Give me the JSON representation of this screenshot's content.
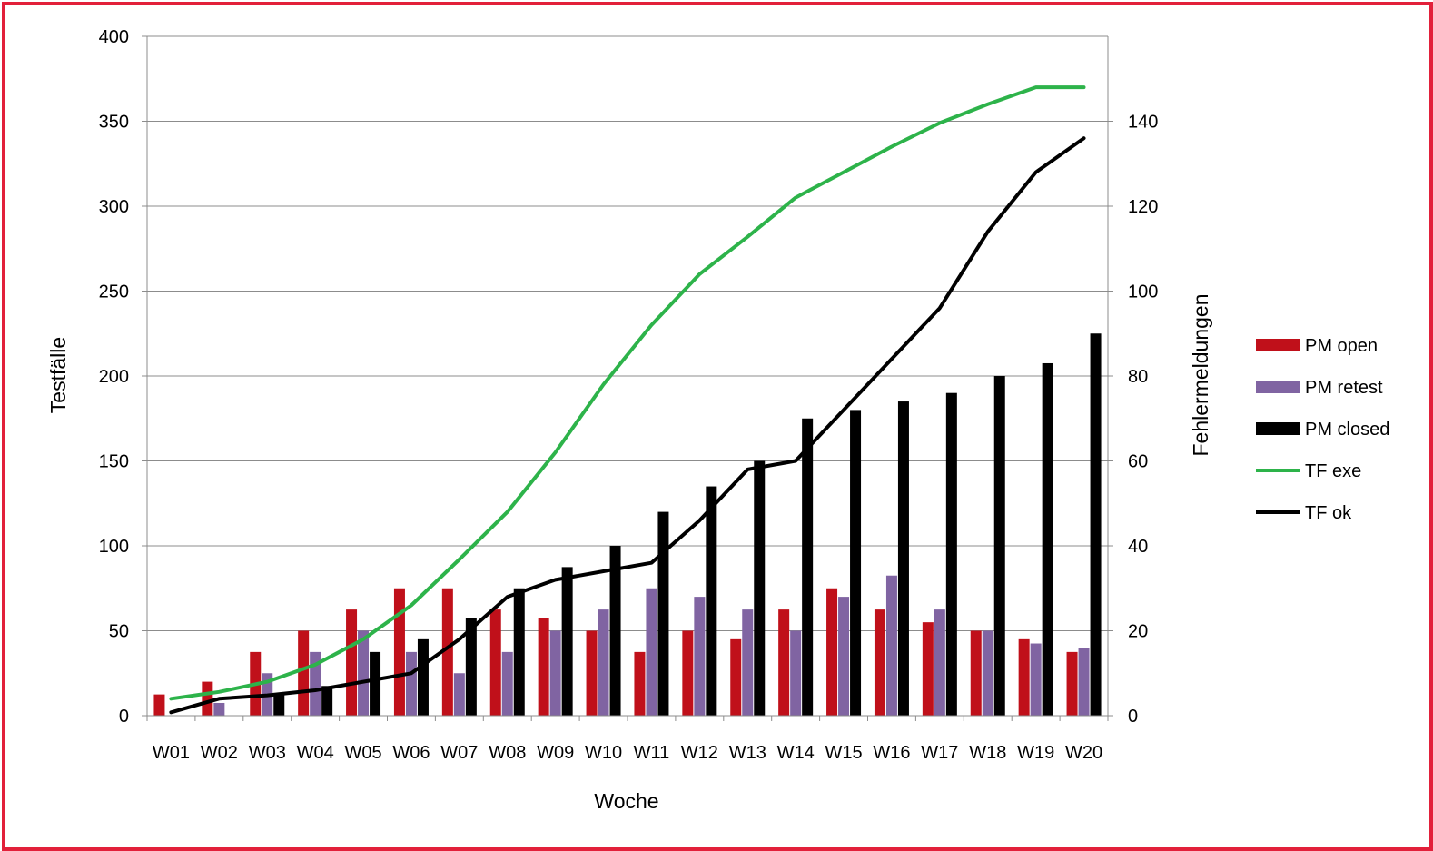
{
  "chart_data": {
    "type": "bar",
    "categories": [
      "W01",
      "W02",
      "W03",
      "W04",
      "W05",
      "W06",
      "W07",
      "W08",
      "W09",
      "W10",
      "W11",
      "W12",
      "W13",
      "W14",
      "W15",
      "W16",
      "W17",
      "W18",
      "W19",
      "W20"
    ],
    "xlabel": "Woche",
    "ylabel": "Testfälle",
    "y2label": "Fehlermeldungen",
    "ylim": [
      0,
      400
    ],
    "y2lim": [
      0,
      160
    ],
    "yticks": [
      0,
      50,
      100,
      150,
      200,
      250,
      300,
      350,
      400
    ],
    "y2ticks": [
      0,
      20,
      40,
      60,
      80,
      100,
      120,
      140
    ],
    "grid": "horizontal",
    "legend_position": "right",
    "bar_series": [
      {
        "name": "PM open",
        "color": "#c0101a",
        "axis": "right",
        "values": [
          5,
          8,
          15,
          20,
          25,
          30,
          30,
          25,
          23,
          20,
          15,
          20,
          18,
          25,
          30,
          25,
          22,
          20,
          18,
          15
        ]
      },
      {
        "name": "PM retest",
        "color": "#8064a2",
        "axis": "right",
        "values": [
          0,
          3,
          10,
          15,
          20,
          15,
          10,
          15,
          20,
          25,
          30,
          28,
          25,
          20,
          28,
          33,
          25,
          20,
          17,
          16
        ]
      },
      {
        "name": "PM closed",
        "color": "#000000",
        "axis": "right",
        "values": [
          0,
          0,
          5,
          7,
          15,
          18,
          23,
          30,
          35,
          40,
          48,
          54,
          60,
          70,
          72,
          74,
          76,
          80,
          83,
          90
        ]
      }
    ],
    "line_series": [
      {
        "name": "TF exe",
        "color": "#2db34a",
        "axis": "left",
        "values": [
          10,
          14,
          20,
          30,
          45,
          65,
          92,
          120,
          155,
          195,
          230,
          260,
          282,
          305,
          320,
          335,
          349,
          360,
          370,
          370
        ]
      },
      {
        "name": "TF ok",
        "color": "#000000",
        "axis": "left",
        "values": [
          2,
          10,
          12,
          15,
          20,
          25,
          45,
          70,
          80,
          85,
          90,
          115,
          145,
          150,
          180,
          210,
          240,
          285,
          320,
          340
        ]
      }
    ]
  }
}
